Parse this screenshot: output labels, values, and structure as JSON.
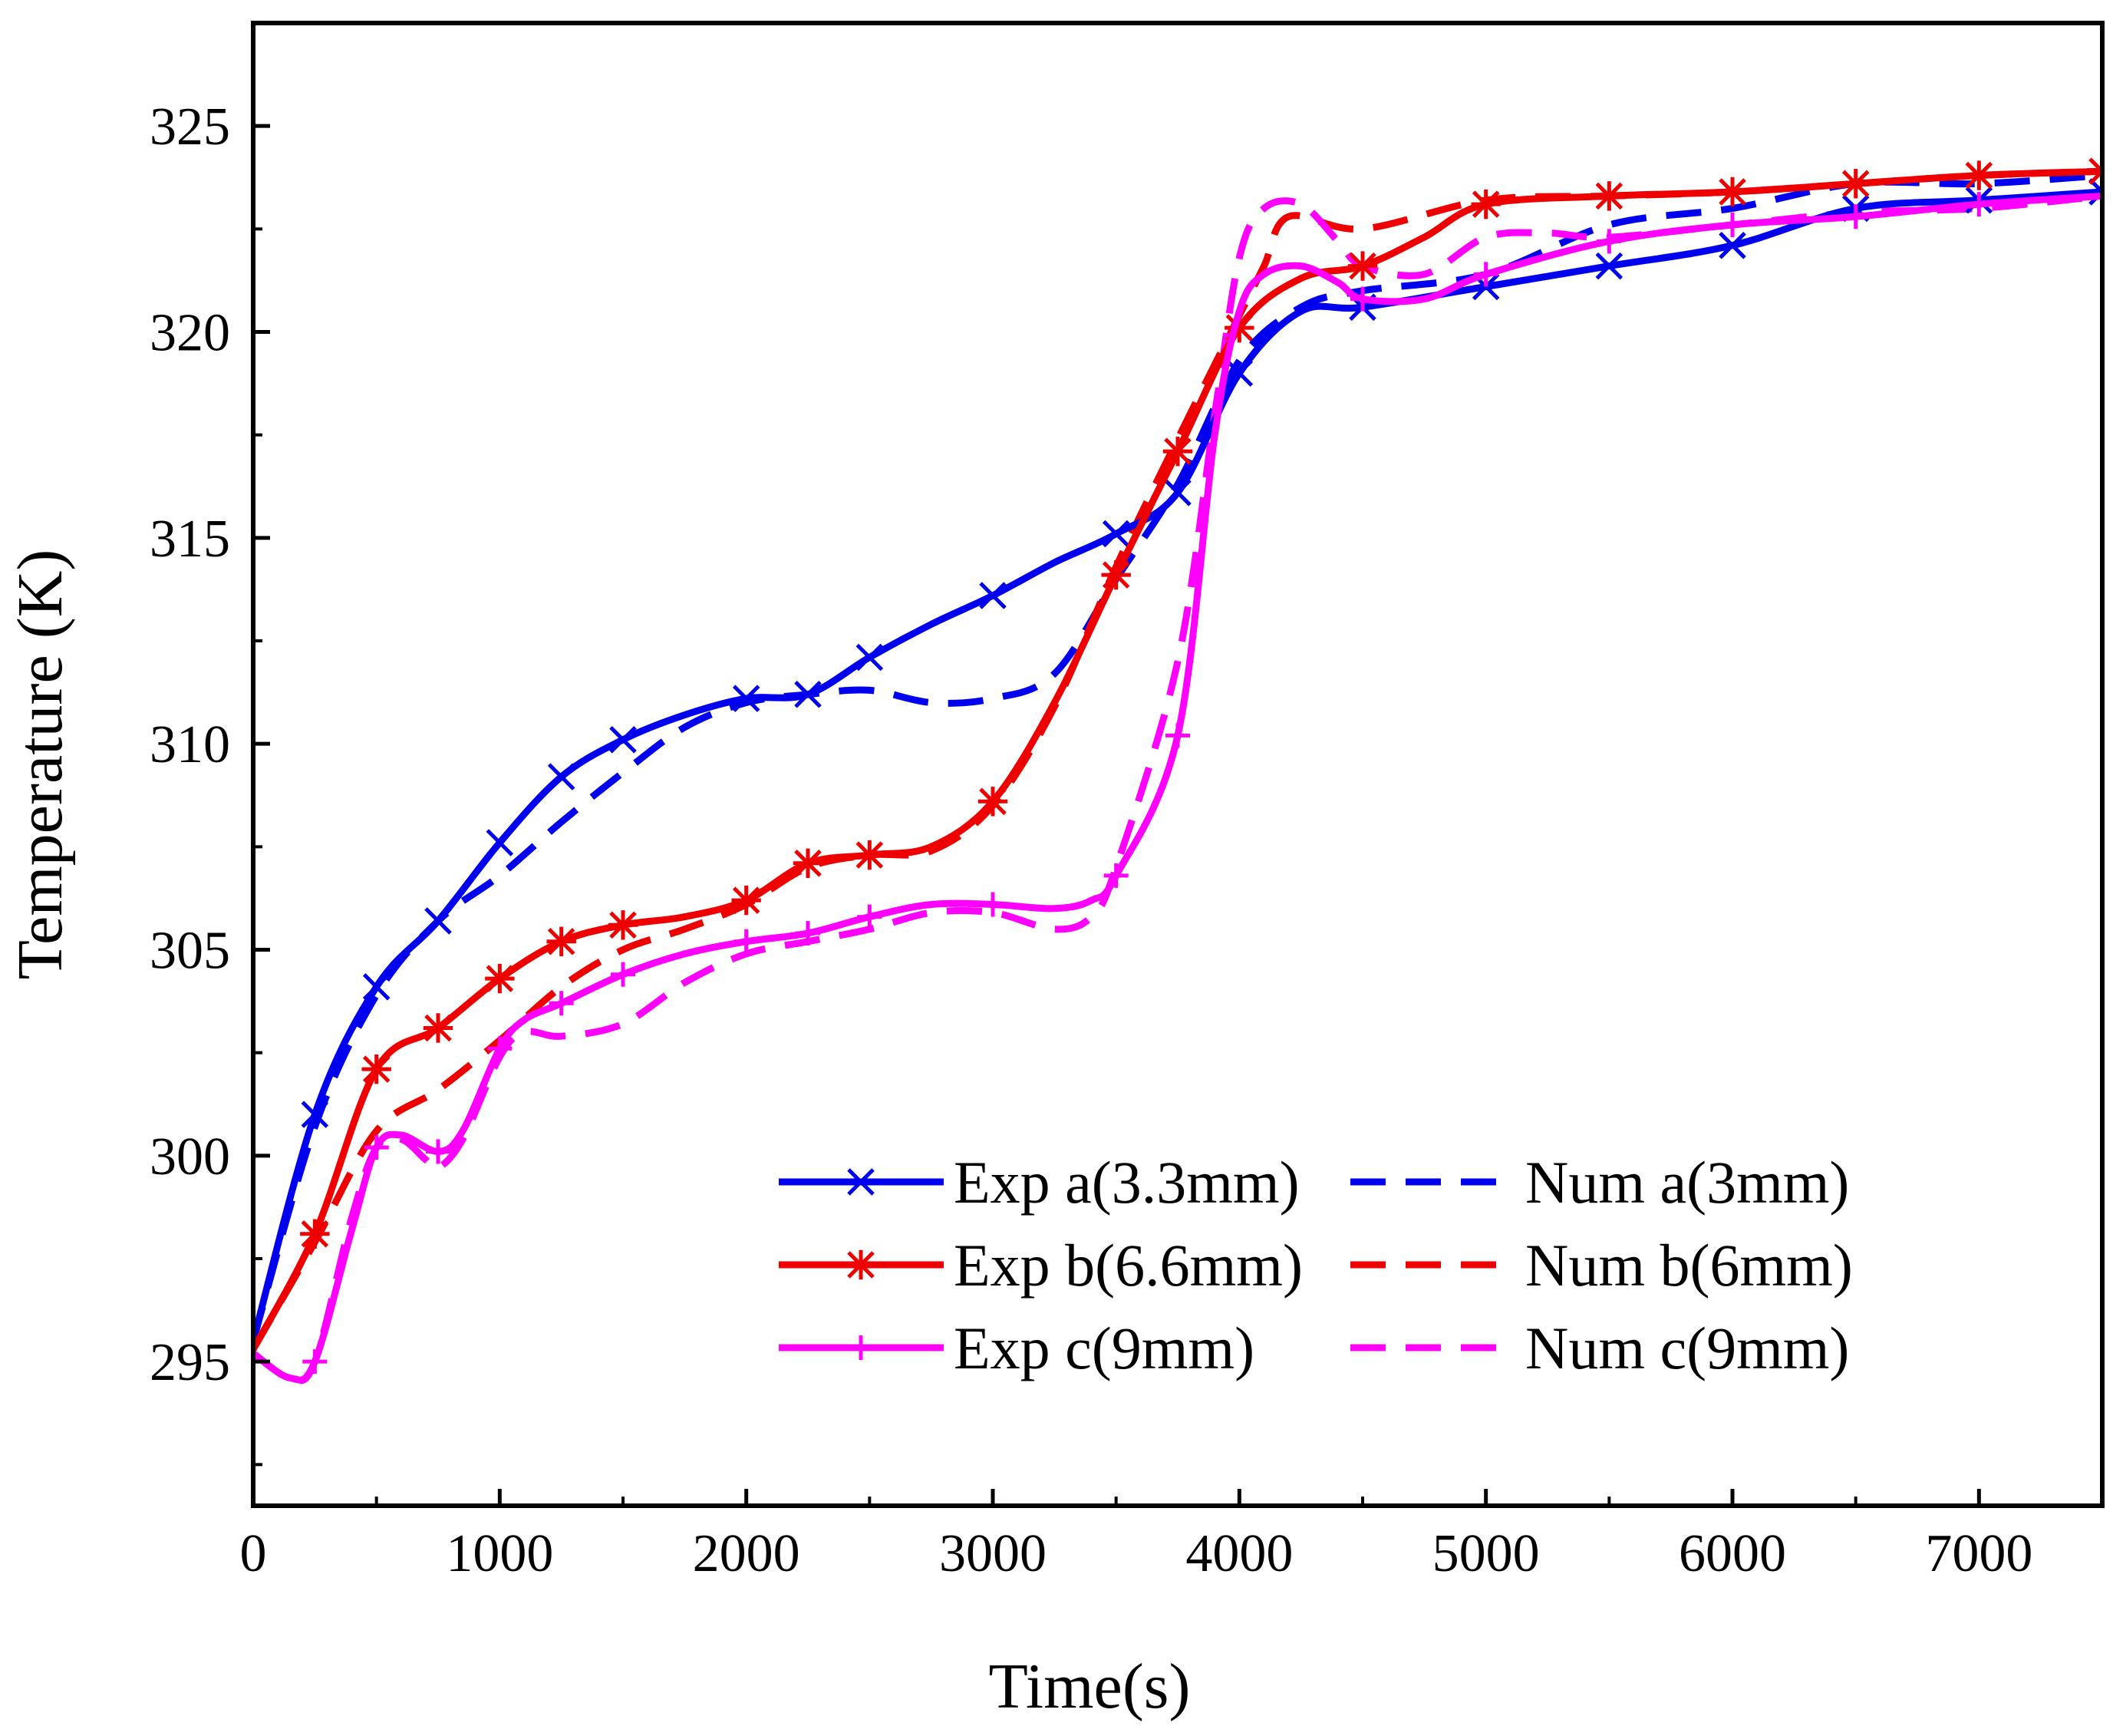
{
  "chart_data": {
    "type": "line",
    "title": "",
    "xlabel": "Time(s)",
    "ylabel": "Temperature (K)",
    "xlim": [
      0,
      7500
    ],
    "ylim": [
      291.5,
      327.5
    ],
    "x_ticks": [
      0,
      1000,
      2000,
      3000,
      4000,
      5000,
      6000,
      7000
    ],
    "y_ticks": [
      295,
      300,
      305,
      310,
      315,
      320,
      325
    ],
    "legend_position": "bottom-right",
    "series": [
      {
        "name": "Exp a(3.3mm)",
        "color": "#0000ee",
        "style": "solid",
        "marker": "x",
        "points": [
          [
            0,
            295.5
          ],
          [
            250,
            301
          ],
          [
            500,
            304.1
          ],
          [
            750,
            305.7
          ],
          [
            1000,
            307.6
          ],
          [
            1250,
            309.2
          ],
          [
            1500,
            310.1
          ],
          [
            1750,
            310.7
          ],
          [
            2000,
            311.1
          ],
          [
            2250,
            311.2
          ],
          [
            2500,
            312.1
          ],
          [
            2750,
            312.9
          ],
          [
            3000,
            313.6
          ],
          [
            3250,
            314.4
          ],
          [
            3500,
            315.1
          ],
          [
            3750,
            316.1
          ],
          [
            4000,
            319
          ],
          [
            4250,
            320.5
          ],
          [
            4500,
            320.6
          ],
          [
            5000,
            321.1
          ],
          [
            5500,
            321.6
          ],
          [
            6000,
            322.1
          ],
          [
            6500,
            323
          ],
          [
            7000,
            323.2
          ],
          [
            7500,
            323.4
          ]
        ],
        "markers": [
          250,
          500,
          750,
          1000,
          1250,
          1500,
          2000,
          2250,
          2500,
          3000,
          3500,
          3750,
          4000,
          4500,
          5000,
          5500,
          6000,
          6500,
          7000,
          7500
        ]
      },
      {
        "name": "Num a(3mm)",
        "color": "#0000ee",
        "style": "dash",
        "marker": "",
        "points": [
          [
            0,
            295.5
          ],
          [
            250,
            300.7
          ],
          [
            500,
            303.9
          ],
          [
            750,
            305.7
          ],
          [
            1000,
            306.8
          ],
          [
            1250,
            308.1
          ],
          [
            1500,
            309.3
          ],
          [
            1750,
            310.4
          ],
          [
            2000,
            311
          ],
          [
            2250,
            311.2
          ],
          [
            2500,
            311.3
          ],
          [
            2750,
            311
          ],
          [
            3000,
            311.1
          ],
          [
            3250,
            311.7
          ],
          [
            3500,
            314
          ],
          [
            3750,
            316.3
          ],
          [
            4000,
            319.3
          ],
          [
            4250,
            320.6
          ],
          [
            4500,
            321
          ],
          [
            5000,
            321.4
          ],
          [
            5500,
            322.6
          ],
          [
            6000,
            323
          ],
          [
            6500,
            323.6
          ],
          [
            7000,
            323.6
          ],
          [
            7500,
            323.8
          ]
        ],
        "markers": []
      },
      {
        "name": "Exp b(6.6mm)",
        "color": "#ee0000",
        "style": "solid",
        "marker": "*",
        "points": [
          [
            0,
            295.3
          ],
          [
            250,
            298.1
          ],
          [
            500,
            302.1
          ],
          [
            750,
            303.1
          ],
          [
            1000,
            304.3
          ],
          [
            1250,
            305.2
          ],
          [
            1500,
            305.6
          ],
          [
            1750,
            305.8
          ],
          [
            2000,
            306.2
          ],
          [
            2250,
            307.1
          ],
          [
            2500,
            307.3
          ],
          [
            2750,
            307.5
          ],
          [
            3000,
            308.6
          ],
          [
            3250,
            311
          ],
          [
            3500,
            314.1
          ],
          [
            3750,
            317.1
          ],
          [
            4000,
            320.1
          ],
          [
            4250,
            321.3
          ],
          [
            4500,
            321.6
          ],
          [
            4750,
            322.3
          ],
          [
            5000,
            323.1
          ],
          [
            5500,
            323.3
          ],
          [
            6000,
            323.4
          ],
          [
            6500,
            323.6
          ],
          [
            7000,
            323.8
          ],
          [
            7500,
            323.9
          ]
        ],
        "markers": [
          250,
          500,
          750,
          1000,
          1250,
          1500,
          2000,
          2250,
          2500,
          3000,
          3500,
          3750,
          4000,
          4500,
          5000,
          5500,
          6000,
          6500,
          7000,
          7500
        ]
      },
      {
        "name": "Num b(6mm)",
        "color": "#ee0000",
        "style": "dash",
        "marker": "",
        "points": [
          [
            0,
            295.3
          ],
          [
            250,
            297.9
          ],
          [
            500,
            300.6
          ],
          [
            750,
            301.6
          ],
          [
            1000,
            302.8
          ],
          [
            1250,
            304.1
          ],
          [
            1500,
            305
          ],
          [
            1750,
            305.5
          ],
          [
            2000,
            306.1
          ],
          [
            2250,
            307
          ],
          [
            2500,
            307.3
          ],
          [
            2750,
            307.4
          ],
          [
            3000,
            308.5
          ],
          [
            3250,
            310.9
          ],
          [
            3500,
            314.3
          ],
          [
            3750,
            317.4
          ],
          [
            4000,
            320.4
          ],
          [
            4100,
            321.6
          ],
          [
            4200,
            322.8
          ],
          [
            4500,
            322.5
          ],
          [
            5000,
            323.2
          ],
          [
            5500,
            323.3
          ],
          [
            6000,
            323.4
          ],
          [
            6500,
            323.6
          ],
          [
            7000,
            323.8
          ],
          [
            7500,
            323.9
          ]
        ],
        "markers": []
      },
      {
        "name": "Exp c(9mm)",
        "color": "#ff00ff",
        "style": "solid",
        "marker": "+",
        "points": [
          [
            0,
            295.2
          ],
          [
            150,
            294.6
          ],
          [
            250,
            295
          ],
          [
            400,
            298.2
          ],
          [
            500,
            300.2
          ],
          [
            600,
            300.5
          ],
          [
            750,
            300.1
          ],
          [
            850,
            300.6
          ],
          [
            1000,
            302.6
          ],
          [
            1100,
            303.3
          ],
          [
            1250,
            303.7
          ],
          [
            1500,
            304.4
          ],
          [
            1750,
            304.9
          ],
          [
            2000,
            305.2
          ],
          [
            2250,
            305.4
          ],
          [
            2500,
            305.8
          ],
          [
            2750,
            306.1
          ],
          [
            3000,
            306.1
          ],
          [
            3250,
            306
          ],
          [
            3400,
            306.2
          ],
          [
            3500,
            306.8
          ],
          [
            3750,
            310.2
          ],
          [
            3900,
            317.5
          ],
          [
            4000,
            320.5
          ],
          [
            4100,
            321.4
          ],
          [
            4250,
            321.6
          ],
          [
            4400,
            321.2
          ],
          [
            4500,
            320.8
          ],
          [
            4750,
            320.8
          ],
          [
            5000,
            321.4
          ],
          [
            5500,
            322.2
          ],
          [
            6000,
            322.6
          ],
          [
            6500,
            322.8
          ],
          [
            7000,
            323.1
          ],
          [
            7500,
            323.3
          ]
        ],
        "markers": [
          250,
          500,
          750,
          1000,
          1250,
          1500,
          2000,
          2250,
          2500,
          3000,
          3500,
          3750,
          4500,
          5000,
          5500,
          6000,
          6500,
          7000,
          7500
        ]
      },
      {
        "name": "Num c(9mm)",
        "color": "#ff00ff",
        "style": "dash",
        "marker": "",
        "points": [
          [
            0,
            295.2
          ],
          [
            150,
            294.6
          ],
          [
            250,
            295
          ],
          [
            400,
            298.5
          ],
          [
            500,
            300.2
          ],
          [
            600,
            300.4
          ],
          [
            700,
            299.9
          ],
          [
            750,
            299.7
          ],
          [
            850,
            300.4
          ],
          [
            1000,
            302.4
          ],
          [
            1100,
            303
          ],
          [
            1250,
            302.9
          ],
          [
            1500,
            303.2
          ],
          [
            1750,
            304.2
          ],
          [
            2000,
            304.9
          ],
          [
            2250,
            305.2
          ],
          [
            2500,
            305.5
          ],
          [
            2750,
            305.9
          ],
          [
            3000,
            305.9
          ],
          [
            3250,
            305.5
          ],
          [
            3400,
            305.8
          ],
          [
            3500,
            307
          ],
          [
            3750,
            312
          ],
          [
            3900,
            318
          ],
          [
            4000,
            321.8
          ],
          [
            4100,
            323
          ],
          [
            4250,
            323.1
          ],
          [
            4400,
            322.2
          ],
          [
            4500,
            321.6
          ],
          [
            4750,
            321.4
          ],
          [
            5000,
            322.3
          ],
          [
            5250,
            322.4
          ],
          [
            5500,
            322.3
          ],
          [
            6000,
            322.6
          ],
          [
            6500,
            322.9
          ],
          [
            7000,
            323
          ],
          [
            7500,
            323.3
          ]
        ],
        "markers": []
      }
    ]
  }
}
